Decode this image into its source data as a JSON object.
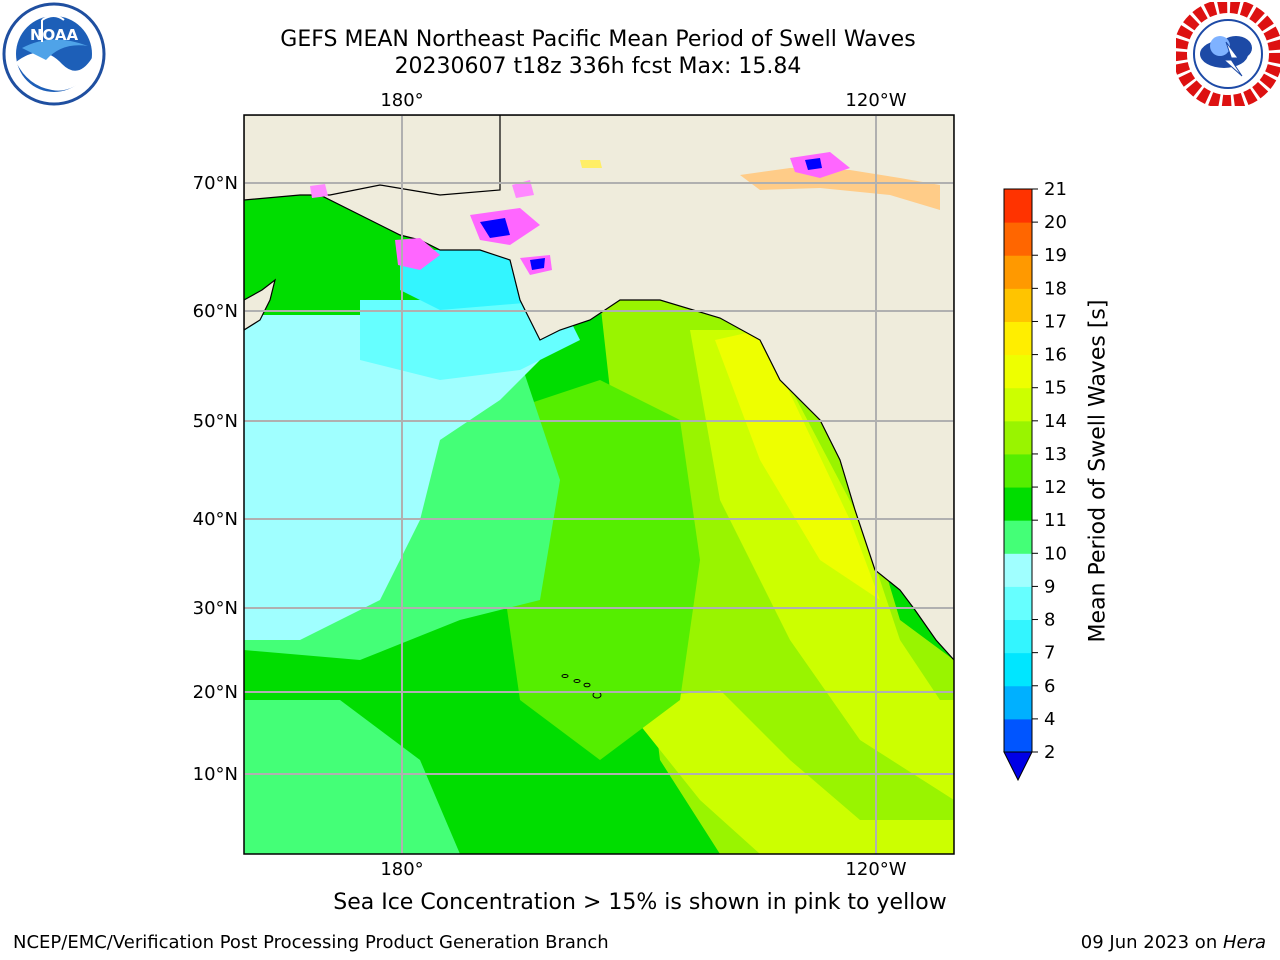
{
  "header": {
    "title_line1": "GEFS MEAN Northeast Pacific Mean Period of Swell Waves",
    "title_line2": "20230607 t18z 336h fcst   Max: 15.84"
  },
  "map": {
    "lon_labels": [
      "180°",
      "120°W"
    ],
    "lat_labels": [
      "70°N",
      "60°N",
      "50°N",
      "40°N",
      "30°N",
      "20°N",
      "10°N"
    ],
    "colors": {
      "land": "#efecdc",
      "coast": "#000000",
      "grid": "#b0b0b0",
      "ice_pink": "#ff66ff",
      "ice_yellow": "#ffee66"
    }
  },
  "colorbar": {
    "title": "Mean Period of Swell Waves [s]",
    "tick_labels": [
      "2",
      "4",
      "6",
      "7",
      "8",
      "9",
      "10",
      "11",
      "12",
      "13",
      "14",
      "15",
      "16",
      "17",
      "18",
      "19",
      "20",
      "21"
    ],
    "colors": [
      "#0055ff",
      "#00b0ff",
      "#00e6ff",
      "#33f5ff",
      "#66ffff",
      "#a0ffff",
      "#44ff77",
      "#00dd00",
      "#55ee00",
      "#99f400",
      "#ccff00",
      "#eeff00",
      "#ffee00",
      "#ffc400",
      "#ff9900",
      "#ff6600",
      "#ff3300",
      "#ff0000"
    ],
    "under_color": "#0000e6"
  },
  "footer": {
    "note": "Sea Ice Concentration > 15% is shown in pink to yellow",
    "left": "NCEP/EMC/Verification Post Processing Product Generation Branch",
    "right_date": "09 Jun 2023 on ",
    "right_host": "Hera"
  }
}
